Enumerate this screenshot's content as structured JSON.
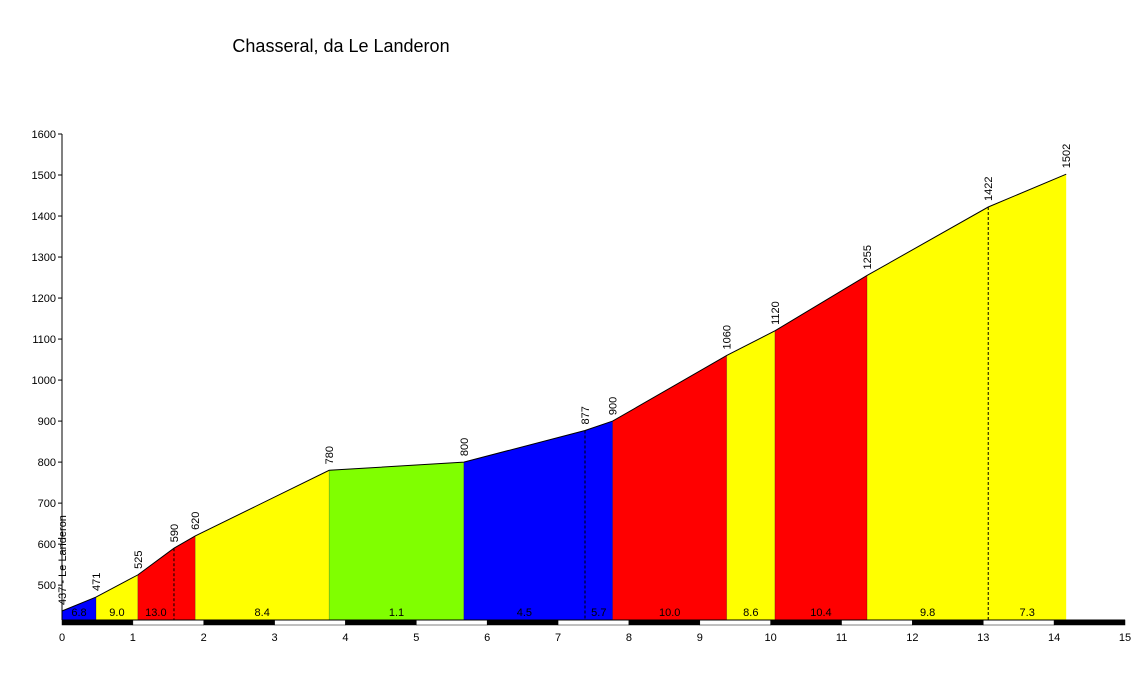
{
  "chart_data": {
    "type": "profile",
    "title": "Chasseral, da Le Landeron",
    "x": [
      0,
      0.48,
      1.07,
      1.58,
      1.88,
      3.77,
      5.67,
      7.38,
      7.77,
      9.38,
      10.06,
      11.36,
      13.07,
      14.17
    ],
    "values": [
      437,
      471,
      525,
      590,
      620,
      780,
      800,
      877,
      900,
      1060,
      1120,
      1255,
      1422,
      1502
    ],
    "value_labels": [
      "437 - Le Landeron",
      "471",
      "525",
      "590",
      "620",
      "780",
      "800",
      "877",
      "900",
      "1060",
      "1120",
      "1255",
      "1422",
      "1502"
    ],
    "grades": [
      6.8,
      {
        "value": 9,
        "label": "9.0"
      },
      {
        "value": 13,
        "label": "13.0"
      },
      null,
      8.4,
      1.1,
      4.5,
      5.7,
      {
        "value": 10,
        "label": "10.0"
      },
      8.6,
      10.4,
      9.8,
      7.3
    ],
    "colors": [
      "#0000ff",
      "#ffff00",
      "#ff0000",
      "#ff0000",
      "#ffff00",
      "#80ff00",
      "#0000ff",
      "#0000ff",
      "#ff0000",
      "#ffff00",
      "#ff0000",
      "#ffff00",
      "#ffff00"
    ],
    "xlim": [
      0,
      15
    ],
    "xticks": [
      0,
      1,
      2,
      3,
      4,
      5,
      6,
      7,
      8,
      9,
      10,
      11,
      12,
      13,
      14,
      15
    ],
    "ylim": [
      415,
      1600
    ],
    "yticks": [
      500,
      600,
      700,
      800,
      900,
      1000,
      1100,
      1200,
      1300,
      1400,
      1500,
      1600
    ]
  }
}
